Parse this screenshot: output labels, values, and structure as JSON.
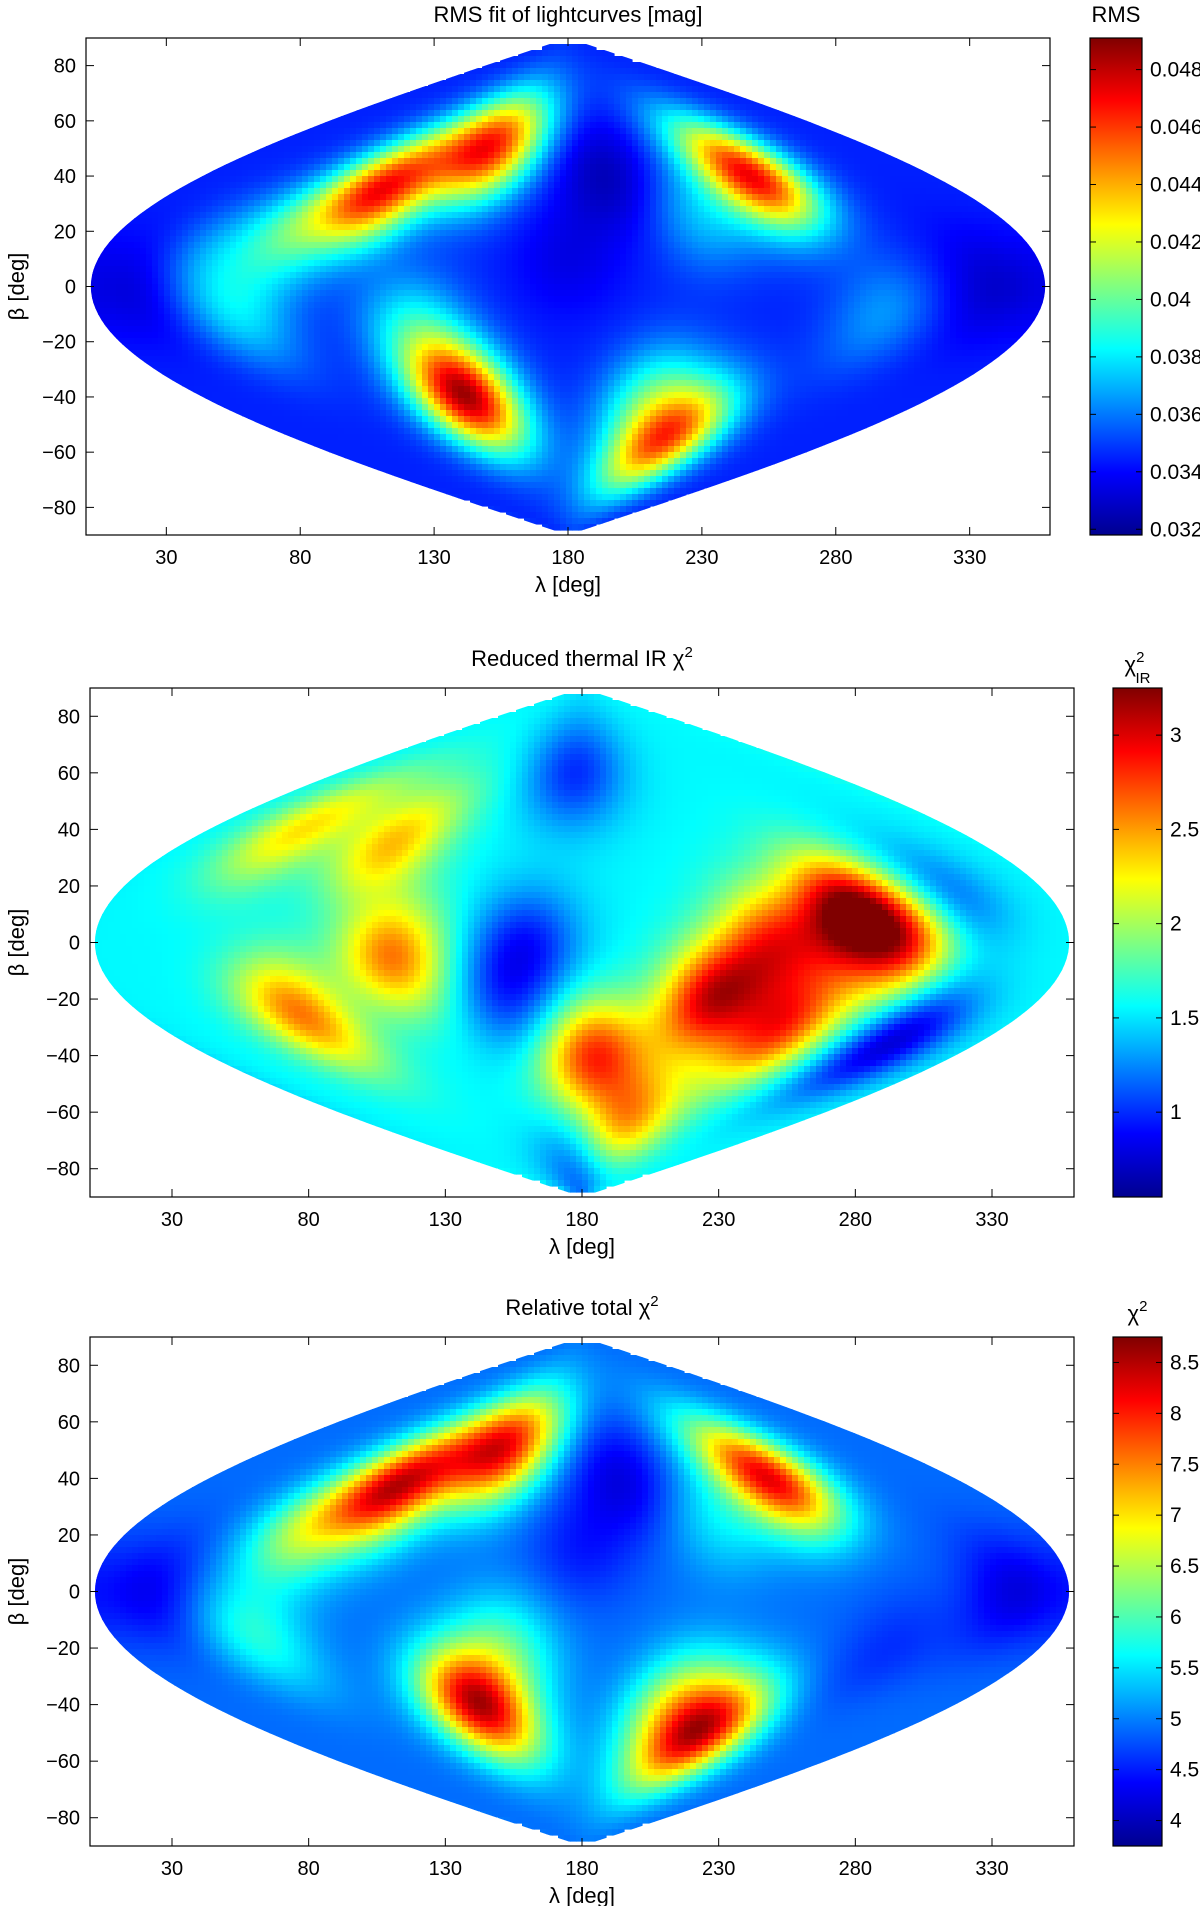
{
  "colors": {
    "jet": [
      "#00008f",
      "#0000ff",
      "#0080ff",
      "#00ffff",
      "#80ff80",
      "#ffff00",
      "#ff8000",
      "#ff0000",
      "#800000"
    ],
    "frame": "#000000",
    "background": "#ffffff"
  },
  "chart_data": [
    {
      "type": "heatmap",
      "projection": "sinusoidal",
      "title": "RMS fit of lightcurves [mag]",
      "xlabel": "λ [deg]",
      "ylabel": "β [deg]",
      "xlim": [
        0,
        360
      ],
      "ylim": [
        -90,
        90
      ],
      "xticks": [
        30,
        80,
        130,
        180,
        230,
        280,
        330
      ],
      "yticks": [
        80,
        60,
        40,
        20,
        0,
        -20,
        -40,
        -60,
        -80
      ],
      "grid": false,
      "colorbar": {
        "label": "RMS",
        "min": 0.0318,
        "max": 0.0491,
        "ticks": [
          {
            "value": 0.048,
            "label": "0.048"
          },
          {
            "value": 0.046,
            "label": "0.046"
          },
          {
            "value": 0.044,
            "label": "0.044"
          },
          {
            "value": 0.042,
            "label": "0.042"
          },
          {
            "value": 0.04,
            "label": "0.04"
          },
          {
            "value": 0.038,
            "label": "0.038"
          },
          {
            "value": 0.036,
            "label": "0.036"
          },
          {
            "value": 0.034,
            "label": "0.034"
          },
          {
            "value": 0.032,
            "label": "0.032"
          }
        ]
      },
      "background_value": 0.0345,
      "features": [
        {
          "lambda": 95,
          "beta": 35,
          "value": 0.046
        },
        {
          "lambda": 135,
          "beta": 50,
          "value": 0.046
        },
        {
          "lambda": 270,
          "beta": 40,
          "value": 0.047
        },
        {
          "lambda": 130,
          "beta": -40,
          "value": 0.048
        },
        {
          "lambda": 245,
          "beta": -55,
          "value": 0.045
        },
        {
          "lambda": 220,
          "beta": -40,
          "value": 0.039
        },
        {
          "lambda": 70,
          "beta": 20,
          "value": 0.039
        },
        {
          "lambda": 55,
          "beta": -10,
          "value": 0.0375
        },
        {
          "lambda": 120,
          "beta": -15,
          "value": 0.038
        },
        {
          "lambda": 40,
          "beta": 10,
          "value": 0.0365
        },
        {
          "lambda": 300,
          "beta": -10,
          "value": 0.0365
        },
        {
          "lambda": 235,
          "beta": 25,
          "value": 0.037
        },
        {
          "lambda": 180,
          "beta": 10,
          "value": 0.0335
        },
        {
          "lambda": 200,
          "beta": 40,
          "value": 0.0325
        },
        {
          "lambda": 20,
          "beta": 0,
          "value": 0.033
        },
        {
          "lambda": 340,
          "beta": 0,
          "value": 0.033
        }
      ]
    },
    {
      "type": "heatmap",
      "projection": "sinusoidal",
      "title": "Reduced thermal IR χ²",
      "xlabel": "λ [deg]",
      "ylabel": "β [deg]",
      "xlim": [
        0,
        360
      ],
      "ylim": [
        -90,
        90
      ],
      "xticks": [
        30,
        80,
        130,
        180,
        230,
        280,
        330
      ],
      "yticks": [
        80,
        60,
        40,
        20,
        0,
        -20,
        -40,
        -60,
        -80
      ],
      "grid": false,
      "colorbar": {
        "label": "χ²IR",
        "label_main": "χ",
        "label_sup": "2",
        "label_sub": "IR",
        "min": 0.55,
        "max": 3.25,
        "ticks": [
          {
            "value": 3,
            "label": "3"
          },
          {
            "value": 2.5,
            "label": "2.5"
          },
          {
            "value": 2,
            "label": "2"
          },
          {
            "value": 1.5,
            "label": "1.5"
          },
          {
            "value": 1,
            "label": "1"
          }
        ]
      },
      "background_value": 1.55,
      "features": [
        {
          "lambda": 280,
          "beta": 10,
          "value": 3.15
        },
        {
          "lambda": 230,
          "beta": -20,
          "value": 2.9
        },
        {
          "lambda": 250,
          "beta": 0,
          "value": 2.6
        },
        {
          "lambda": 265,
          "beta": -30,
          "value": 2.7
        },
        {
          "lambda": 300,
          "beta": 0,
          "value": 2.7
        },
        {
          "lambda": 185,
          "beta": -40,
          "value": 2.8
        },
        {
          "lambda": 110,
          "beta": -5,
          "value": 2.6
        },
        {
          "lambda": 65,
          "beta": -25,
          "value": 2.6
        },
        {
          "lambda": 95,
          "beta": 35,
          "value": 2.4
        },
        {
          "lambda": 215,
          "beta": -65,
          "value": 2.5
        },
        {
          "lambda": 45,
          "beta": 40,
          "value": 2.3
        },
        {
          "lambda": 160,
          "beta": 0,
          "value": 1.0
        },
        {
          "lambda": 175,
          "beta": 60,
          "value": 1.0
        },
        {
          "lambda": 320,
          "beta": -35,
          "value": 0.75
        },
        {
          "lambda": 180,
          "beta": -80,
          "value": 0.85
        },
        {
          "lambda": 150,
          "beta": -20,
          "value": 1.1
        },
        {
          "lambda": 320,
          "beta": 15,
          "value": 1.1
        }
      ]
    },
    {
      "type": "heatmap",
      "projection": "sinusoidal",
      "title": "Relative total χ²",
      "xlabel": "λ [deg]",
      "ylabel": "β [deg]",
      "xlim": [
        0,
        360
      ],
      "ylim": [
        -90,
        90
      ],
      "xticks": [
        30,
        80,
        130,
        180,
        230,
        280,
        330
      ],
      "yticks": [
        80,
        60,
        40,
        20,
        0,
        -20,
        -40,
        -60,
        -80
      ],
      "grid": false,
      "colorbar": {
        "label": "χ²",
        "label_main": "χ",
        "label_sup": "2",
        "label_sub": "",
        "min": 3.75,
        "max": 8.75,
        "ticks": [
          {
            "value": 8.5,
            "label": "8.5"
          },
          {
            "value": 8,
            "label": "8"
          },
          {
            "value": 7.5,
            "label": "7.5"
          },
          {
            "value": 7,
            "label": "7"
          },
          {
            "value": 6.5,
            "label": "6.5"
          },
          {
            "value": 6,
            "label": "6"
          },
          {
            "value": 5.5,
            "label": "5.5"
          },
          {
            "value": 5,
            "label": "5"
          },
          {
            "value": 4.5,
            "label": "4.5"
          },
          {
            "value": 4,
            "label": "4"
          }
        ]
      },
      "background_value": 4.9,
      "features": [
        {
          "lambda": 95,
          "beta": 37,
          "value": 8.1
        },
        {
          "lambda": 135,
          "beta": 50,
          "value": 8.0
        },
        {
          "lambda": 270,
          "beta": 40,
          "value": 8.2
        },
        {
          "lambda": 130,
          "beta": -40,
          "value": 8.4
        },
        {
          "lambda": 250,
          "beta": -50,
          "value": 7.9
        },
        {
          "lambda": 225,
          "beta": -40,
          "value": 6.6
        },
        {
          "lambda": 70,
          "beta": 22,
          "value": 6.4
        },
        {
          "lambda": 55,
          "beta": -15,
          "value": 5.8
        },
        {
          "lambda": 150,
          "beta": -20,
          "value": 5.9
        },
        {
          "lambda": 235,
          "beta": 25,
          "value": 5.5
        },
        {
          "lambda": 180,
          "beta": 15,
          "value": 4.5
        },
        {
          "lambda": 200,
          "beta": 40,
          "value": 4.2
        },
        {
          "lambda": 20,
          "beta": 0,
          "value": 4.3
        },
        {
          "lambda": 340,
          "beta": 0,
          "value": 4.2
        },
        {
          "lambda": 300,
          "beta": -20,
          "value": 4.6
        }
      ]
    }
  ]
}
